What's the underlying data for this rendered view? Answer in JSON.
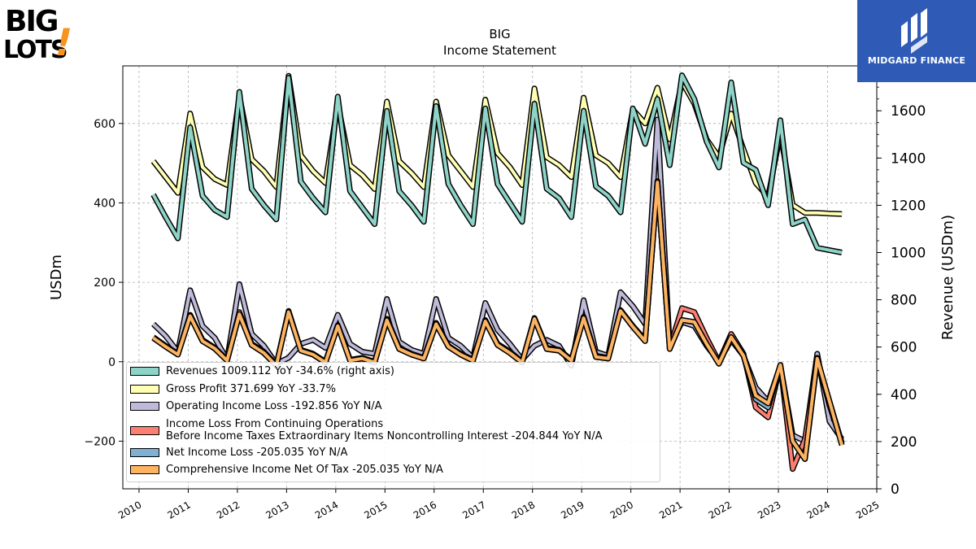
{
  "brand": {
    "logo_text_big": "BIG",
    "logo_text_lots": "LOTS",
    "logo_mark": "!",
    "badge_label": "MIDGARD FINANCE",
    "badge_icon": "midgard-m-logo-icon",
    "badge_color": "#2f5bb7"
  },
  "chart_data": {
    "type": "line",
    "title": "BIG",
    "subtitle": "Income Statement",
    "ylabel_left": "USDm",
    "ylabel_right": "Revenue (USDm)",
    "ylim_left": [
      -320,
      745
    ],
    "ylim_right": [
      0,
      1790
    ],
    "xlim": [
      2009.67,
      2025.0
    ],
    "x_ticks": [
      "2010",
      "2011",
      "2012",
      "2013",
      "2014",
      "2015",
      "2016",
      "2017",
      "2018",
      "2019",
      "2020",
      "2021",
      "2022",
      "2023",
      "2024",
      "2025"
    ],
    "y_ticks_left": [
      "−200",
      "0",
      "200",
      "400",
      "600"
    ],
    "y_ticks_right": [
      "0",
      "200",
      "400",
      "600",
      "800",
      "1000",
      "1200",
      "1400",
      "1600"
    ],
    "grid": true,
    "legend_position": "lower-left",
    "x": [
      2010.29,
      2010.54,
      2010.79,
      2011.04,
      2011.29,
      2011.54,
      2011.79,
      2012.04,
      2012.29,
      2012.54,
      2012.79,
      2013.04,
      2013.29,
      2013.54,
      2013.79,
      2014.04,
      2014.29,
      2014.54,
      2014.79,
      2015.04,
      2015.29,
      2015.54,
      2015.79,
      2016.04,
      2016.29,
      2016.54,
      2016.79,
      2017.04,
      2017.29,
      2017.54,
      2017.79,
      2018.04,
      2018.29,
      2018.54,
      2018.79,
      2019.04,
      2019.29,
      2019.54,
      2019.79,
      2020.04,
      2020.29,
      2020.54,
      2020.79,
      2021.04,
      2021.29,
      2021.54,
      2021.79,
      2022.04,
      2022.29,
      2022.54,
      2022.79,
      2023.04,
      2023.29,
      2023.54,
      2023.79,
      2024.04,
      2024.29
    ],
    "series": [
      {
        "name": "Revenues",
        "legend": "Revenues  1009.112 YoY -34.6% (right axis)",
        "color": "#8dd3c7",
        "axis": "right",
        "values": [
          1245,
          1150,
          1060,
          1530,
          1240,
          1180,
          1150,
          1680,
          1270,
          1200,
          1140,
          1740,
          1300,
          1230,
          1170,
          1660,
          1260,
          1190,
          1120,
          1600,
          1260,
          1200,
          1130,
          1620,
          1290,
          1200,
          1120,
          1610,
          1290,
          1210,
          1130,
          1630,
          1270,
          1230,
          1150,
          1600,
          1280,
          1240,
          1170,
          1610,
          1460,
          1650,
          1370,
          1750,
          1650,
          1470,
          1360,
          1720,
          1380,
          1350,
          1200,
          1560,
          1120,
          1140,
          1020,
          1010,
          1000
        ]
      },
      {
        "name": "Gross Profit",
        "legend": "Gross Profit  371.699 YoY -33.7%",
        "color": "#ffffb3",
        "axis": "left",
        "values": [
          505,
          465,
          425,
          625,
          490,
          460,
          445,
          670,
          510,
          480,
          440,
          720,
          520,
          480,
          450,
          650,
          495,
          470,
          435,
          655,
          505,
          475,
          440,
          655,
          520,
          480,
          440,
          660,
          525,
          490,
          445,
          688,
          515,
          495,
          465,
          665,
          520,
          500,
          465,
          635,
          600,
          690,
          560,
          705,
          650,
          560,
          515,
          625,
          535,
          450,
          415,
          575,
          395,
          375,
          375,
          373,
          372
        ]
      },
      {
        "name": "Operating Income Loss",
        "legend": "Operating Income Loss  -192.856 YoY N/A",
        "color": "#bebada",
        "axis": "left",
        "values": [
          95,
          65,
          25,
          180,
          90,
          60,
          5,
          195,
          70,
          40,
          -5,
          10,
          45,
          55,
          35,
          118,
          45,
          25,
          20,
          158,
          50,
          30,
          20,
          158,
          60,
          40,
          10,
          148,
          80,
          45,
          5,
          40,
          55,
          40,
          -10,
          155,
          25,
          15,
          175,
          140,
          95,
          610,
          40,
          100,
          90,
          40,
          0,
          55,
          15,
          -65,
          -100,
          -10,
          -185,
          -200,
          20,
          -150,
          -195
        ]
      },
      {
        "name": "Income Loss From Continuing Operations\nBefore Income Taxes Extraordinary Items Noncontrolling Interest",
        "legend": "Income Loss From Continuing Operations\nBefore Income Taxes Extraordinary Items Noncontrolling Interest  -204.844 YoY N/A",
        "color": "#fb8072",
        "axis": "left",
        "values": [
          62,
          40,
          20,
          118,
          55,
          35,
          5,
          125,
          45,
          25,
          -8,
          128,
          30,
          20,
          0,
          92,
          5,
          10,
          0,
          108,
          35,
          20,
          10,
          98,
          40,
          20,
          5,
          105,
          45,
          25,
          0,
          110,
          35,
          30,
          5,
          113,
          15,
          10,
          130,
          90,
          55,
          455,
          35,
          135,
          125,
          60,
          0,
          70,
          20,
          -115,
          -140,
          -8,
          -270,
          -195,
          10,
          -110,
          -205
        ]
      },
      {
        "name": "Net Income Loss",
        "legend": "Net Income Loss  -205.035 YoY N/A",
        "color": "#80b1d3",
        "axis": "left",
        "values": [
          60,
          38,
          18,
          115,
          52,
          33,
          3,
          120,
          42,
          22,
          -10,
          125,
          28,
          18,
          -2,
          90,
          3,
          8,
          -2,
          105,
          32,
          18,
          8,
          95,
          38,
          18,
          3,
          102,
          42,
          22,
          -2,
          108,
          32,
          28,
          3,
          110,
          12,
          8,
          128,
          88,
          52,
          452,
          32,
          105,
          100,
          45,
          -5,
          62,
          15,
          -95,
          -115,
          -8,
          -200,
          -245,
          5,
          -100,
          -205
        ]
      },
      {
        "name": "Comprehensive Income Net Of Tax",
        "legend": "Comprehensive Income Net Of Tax  -205.035 YoY N/A",
        "color": "#fdb462",
        "axis": "left",
        "values": [
          60,
          38,
          18,
          115,
          52,
          33,
          3,
          120,
          42,
          22,
          -10,
          125,
          28,
          18,
          -2,
          90,
          3,
          8,
          -2,
          105,
          32,
          18,
          8,
          95,
          38,
          18,
          3,
          102,
          42,
          22,
          -2,
          108,
          32,
          28,
          3,
          110,
          12,
          8,
          128,
          88,
          52,
          452,
          32,
          105,
          100,
          45,
          -5,
          62,
          15,
          -85,
          -105,
          -8,
          -200,
          -245,
          8,
          -100,
          -210
        ]
      }
    ]
  }
}
